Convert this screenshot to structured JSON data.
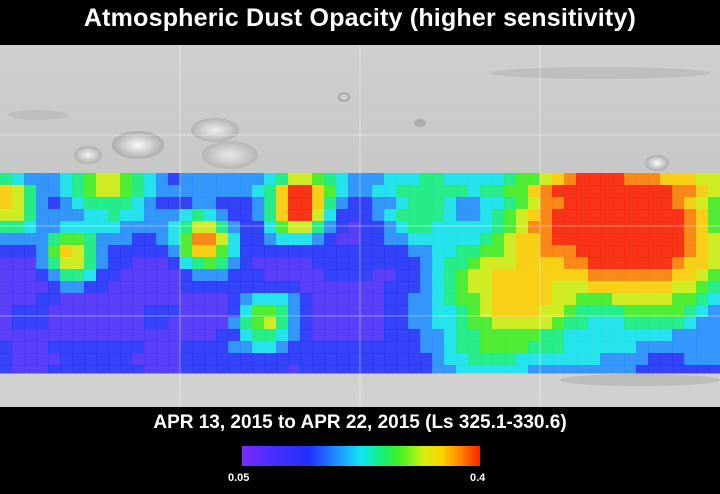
{
  "title": "Atmospheric Dust Opacity (higher sensitivity)",
  "subtitle": "APR 13, 2015 to APR 22, 2015 (Ls 325.1-330.6)",
  "colorbar": {
    "min_label": "0.05",
    "max_label": "0.4",
    "colors": [
      "#7a2cff",
      "#4a2dff",
      "#2030ff",
      "#2090ff",
      "#10e6f0",
      "#10f080",
      "#40f020",
      "#d0f010",
      "#ffd000",
      "#ff8000",
      "#ff2000"
    ]
  },
  "map": {
    "basemap": "shaded relief",
    "grid": true
  }
}
